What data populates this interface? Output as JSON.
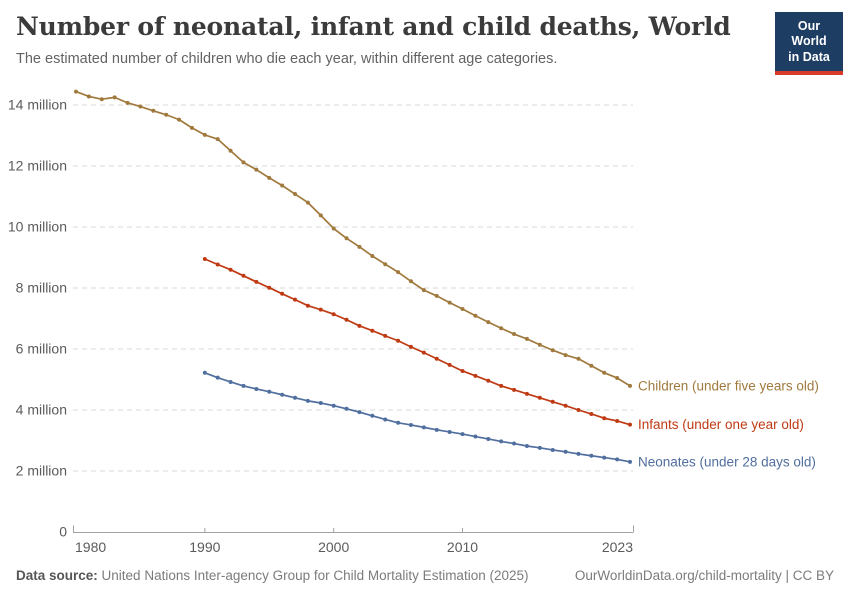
{
  "header": {
    "title": "Number of neonatal, infant and child deaths, World",
    "subtitle": "The estimated number of children who die each year, within different age categories.",
    "logo": {
      "line1": "Our World",
      "line2": "in Data",
      "bg_color": "#1d3d63",
      "bar_color": "#d93b2b"
    }
  },
  "chart_data": {
    "type": "line",
    "title": "Number of neonatal, infant and child deaths, World",
    "subtitle": "The estimated number of children who die each year, within different age categories.",
    "xlabel": "",
    "ylabel": "",
    "unit": "million",
    "x_range": [
      1980,
      2023
    ],
    "ylim": [
      0,
      14.6
    ],
    "grid": "horizontal-dashed",
    "legend_position": "line-end-labels-right",
    "x_ticks": [
      1980,
      1990,
      2000,
      2010,
      2023
    ],
    "y_ticks": [
      {
        "value": 0,
        "label": "0"
      },
      {
        "value": 2,
        "label": "2 million"
      },
      {
        "value": 4,
        "label": "4 million"
      },
      {
        "value": 6,
        "label": "6 million"
      },
      {
        "value": 8,
        "label": "8 million"
      },
      {
        "value": 10,
        "label": "10 million"
      },
      {
        "value": 12,
        "label": "12 million"
      },
      {
        "value": 14,
        "label": "14 million"
      }
    ],
    "series": [
      {
        "name": "Children (under five years old)",
        "color": "#A0793D",
        "start_year": 1980,
        "values": [
          14.44,
          14.28,
          14.19,
          14.25,
          14.07,
          13.95,
          13.81,
          13.68,
          13.52,
          13.25,
          13.02,
          12.88,
          12.5,
          12.12,
          11.88,
          11.61,
          11.36,
          11.08,
          10.8,
          10.38,
          9.95,
          9.63,
          9.35,
          9.05,
          8.78,
          8.52,
          8.22,
          7.93,
          7.74,
          7.52,
          7.31,
          7.09,
          6.88,
          6.68,
          6.49,
          6.33,
          6.14,
          5.96,
          5.8,
          5.68,
          5.45,
          5.22,
          5.05,
          4.79
        ]
      },
      {
        "name": "Infants (under one year old)",
        "color": "#BF3A13",
        "start_year": 1990,
        "values": [
          8.95,
          8.77,
          8.6,
          8.4,
          8.2,
          8.01,
          7.81,
          7.62,
          7.42,
          7.29,
          7.14,
          6.96,
          6.76,
          6.6,
          6.43,
          6.27,
          6.07,
          5.88,
          5.68,
          5.48,
          5.28,
          5.12,
          4.96,
          4.79,
          4.66,
          4.53,
          4.4,
          4.27,
          4.14,
          4.0,
          3.87,
          3.73,
          3.64,
          3.52
        ]
      },
      {
        "name": "Neonates (under 28 days old)",
        "color": "#506E9E",
        "start_year": 1990,
        "values": [
          5.22,
          5.06,
          4.92,
          4.79,
          4.69,
          4.6,
          4.5,
          4.4,
          4.3,
          4.23,
          4.14,
          4.04,
          3.93,
          3.81,
          3.69,
          3.58,
          3.51,
          3.43,
          3.35,
          3.28,
          3.21,
          3.13,
          3.05,
          2.97,
          2.9,
          2.82,
          2.76,
          2.69,
          2.63,
          2.56,
          2.5,
          2.44,
          2.38,
          2.3
        ]
      }
    ],
    "style": {
      "grid_color": "#d9d9d9",
      "axis_color": "#a3a3a3",
      "tick_label_color": "#5b5b5b"
    }
  },
  "footer": {
    "source_label": "Data source:",
    "source": "United Nations Inter-agency Group for Child Mortality Estimation (2025)",
    "attribution": "OurWorldinData.org/child-mortality | CC BY"
  }
}
